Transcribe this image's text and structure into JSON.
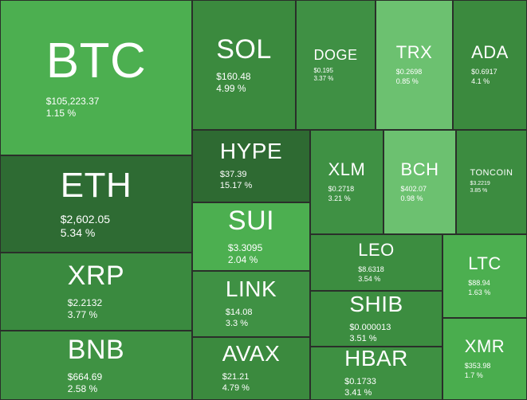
{
  "tiles": [
    {
      "symbol": "BTC",
      "price": "$105,223.37",
      "change": "1.15 %",
      "color": "#4caf50"
    },
    {
      "symbol": "ETH",
      "price": "$2,602.05",
      "change": "5.34 %",
      "color": "#2e6b33"
    },
    {
      "symbol": "XRP",
      "price": "$2.2132",
      "change": "3.77 %",
      "color": "#3a8a3f"
    },
    {
      "symbol": "BNB",
      "price": "$664.69",
      "change": "2.58 %",
      "color": "#3f9243"
    },
    {
      "symbol": "SOL",
      "price": "$160.48",
      "change": "4.99 %",
      "color": "#3b8a3e"
    },
    {
      "symbol": "DOGE",
      "price": "$0.195",
      "change": "3.37 %",
      "color": "#3f9044"
    },
    {
      "symbol": "TRX",
      "price": "$0.2698",
      "change": "0.85 %",
      "color": "#6cc170"
    },
    {
      "symbol": "ADA",
      "price": "$0.6917",
      "change": "4.1 %",
      "color": "#3b8a3e"
    },
    {
      "symbol": "HYPE",
      "price": "$37.39",
      "change": "15.17 %",
      "color": "#2e6a32"
    },
    {
      "symbol": "SUI",
      "price": "$3.3095",
      "change": "2.04 %",
      "color": "#4caf50"
    },
    {
      "symbol": "LINK",
      "price": "$14.08",
      "change": "3.3 %",
      "color": "#3f9144"
    },
    {
      "symbol": "AVAX",
      "price": "$21.21",
      "change": "4.79 %",
      "color": "#3b8a3e"
    },
    {
      "symbol": "XLM",
      "price": "$0.2718",
      "change": "3.21 %",
      "color": "#3f9144"
    },
    {
      "symbol": "BCH",
      "price": "$402.07",
      "change": "0.98 %",
      "color": "#6cc170"
    },
    {
      "symbol": "TONCOIN",
      "price": "$3.2219",
      "change": "3.85 %",
      "color": "#3c8c40"
    },
    {
      "symbol": "LEO",
      "price": "$8.6318",
      "change": "3.54 %",
      "color": "#3c8d40"
    },
    {
      "symbol": "SHIB",
      "price": "$0.000013",
      "change": "3.51 %",
      "color": "#3c8d40"
    },
    {
      "symbol": "HBAR",
      "price": "$0.1733",
      "change": "3.41 %",
      "color": "#3e9042"
    },
    {
      "symbol": "LTC",
      "price": "$88.94",
      "change": "1.63 %",
      "color": "#4caf50"
    },
    {
      "symbol": "XMR",
      "price": "$353.98",
      "change": "1.7 %",
      "color": "#4aad4e"
    }
  ]
}
